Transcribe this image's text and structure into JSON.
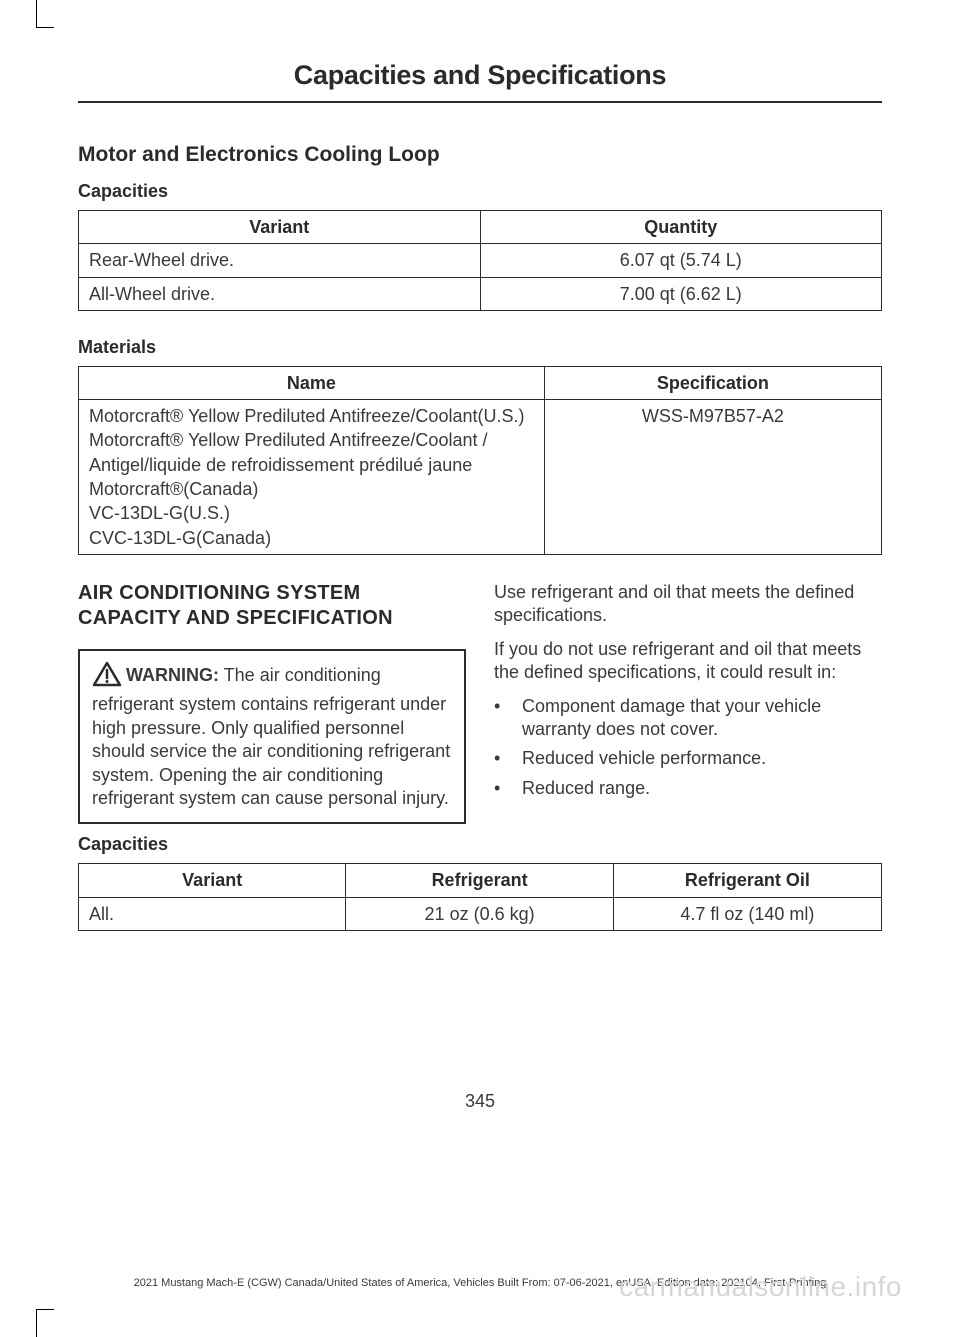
{
  "chapter_title": "Capacities and Specifications",
  "section1": {
    "heading": "Motor and Electronics Cooling Loop",
    "capacities_label": "Capacities",
    "capacities_table": {
      "columns": [
        "Variant",
        "Quantity"
      ],
      "col_widths": [
        "50%",
        "50%"
      ],
      "rows": [
        [
          "Rear-Wheel drive.",
          "6.07 qt (5.74 L)"
        ],
        [
          "All-Wheel drive.",
          "7.00 qt (6.62 L)"
        ]
      ],
      "alignments": [
        "left",
        "center"
      ]
    },
    "materials_label": "Materials",
    "materials_table": {
      "columns": [
        "Name",
        "Specification"
      ],
      "col_widths": [
        "58%",
        "42%"
      ],
      "rows": [
        [
          "Motorcraft® Yellow Prediluted Antifreeze/Coolant(U.S.)\nMotorcraft® Yellow Prediluted Antifreeze/Coolant / Antigel/liquide de refroidissement prédilué jaune Motorcraft®(Canada)\nVC-13DL-G(U.S.)\nCVC-13DL-G(Canada)",
          "WSS-M97B57-A2"
        ]
      ],
      "alignments": [
        "left",
        "center"
      ]
    }
  },
  "section2": {
    "heading": "AIR CONDITIONING SYSTEM CAPACITY AND SPECIFICATION",
    "warning_label": "WARNING:",
    "warning_text": " The air conditioning refrigerant system contains refrigerant under high pressure. Only qualified personnel should service the air conditioning refrigerant system. Opening the air conditioning refrigerant system can cause personal injury.",
    "para1": "Use refrigerant and oil that meets the defined specifications.",
    "para2": "If you do not use refrigerant and oil that meets the defined specifications, it could result in:",
    "bullets": [
      "Component damage that your vehicle warranty does not cover.",
      "Reduced vehicle performance.",
      "Reduced range."
    ],
    "capacities_label": "Capacities",
    "capacities_table": {
      "columns": [
        "Variant",
        "Refrigerant",
        "Refrigerant Oil"
      ],
      "col_widths": [
        "33.3%",
        "33.3%",
        "33.4%"
      ],
      "rows": [
        [
          "All.",
          "21 oz (0.6 kg)",
          "4.7 fl oz (140 ml)"
        ]
      ],
      "alignments": [
        "left",
        "center",
        "center"
      ]
    }
  },
  "page_number": "345",
  "footer": "2021 Mustang Mach-E (CGW) Canada/United States of America, Vehicles Built From: 07-06-2021, enUSA, Edition date: 202104, First-Printing",
  "watermark": "carmanualsonline.info",
  "colors": {
    "text": "#3a3a3a",
    "heading": "#2b2b2b",
    "border": "#2b2b2b",
    "watermark": "#d6d6d6",
    "background": "#ffffff"
  },
  "warning_icon": {
    "shape": "triangle",
    "stroke": "#2b2b2b",
    "fill": "none",
    "exclamation": "#2b2b2b",
    "size": 30
  }
}
